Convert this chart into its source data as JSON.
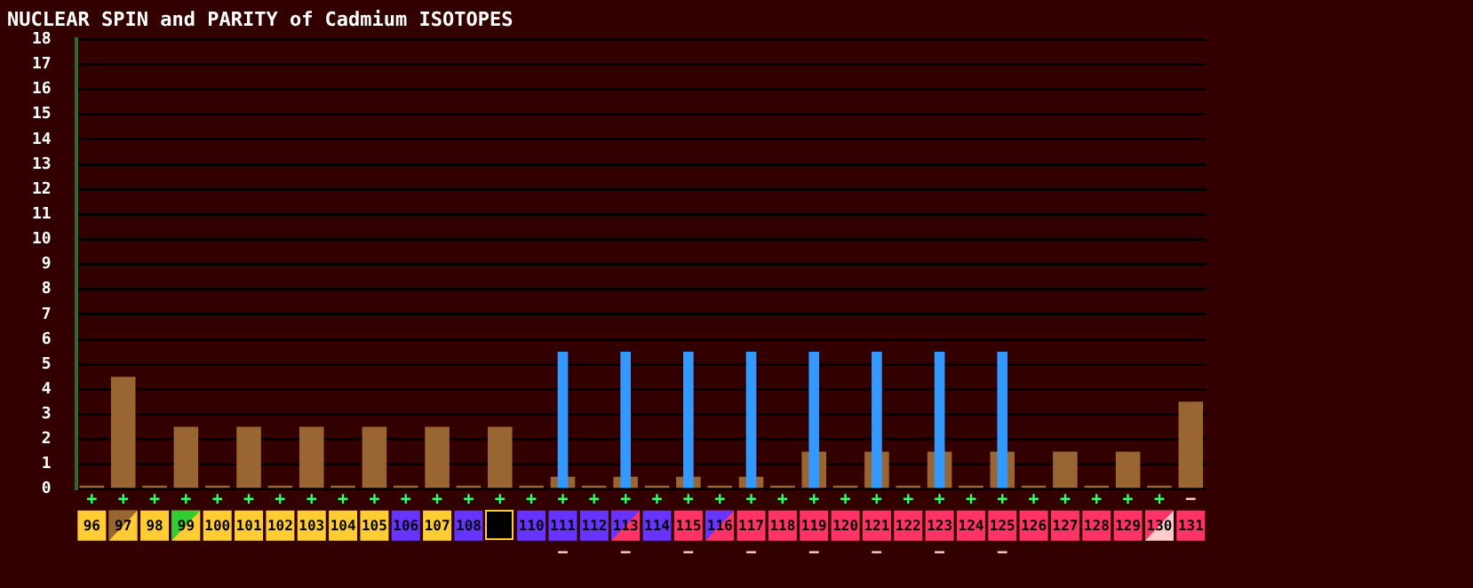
{
  "chart_data": {
    "type": "bar",
    "title": "NUCLEAR SPIN and PARITY of Cadmium ISOTOPES",
    "categories": [
      "96",
      "97",
      "98",
      "99",
      "100",
      "101",
      "102",
      "103",
      "104",
      "105",
      "106",
      "107",
      "108",
      null,
      "110",
      "111",
      "112",
      "113",
      "114",
      "115",
      "116",
      "117",
      "118",
      "119",
      "120",
      "121",
      "122",
      "123",
      "124",
      "125",
      "126",
      "127",
      "128",
      "129",
      "130",
      "131"
    ],
    "series": [
      {
        "color": "#996633",
        "values": [
          0,
          4.5,
          0,
          2.5,
          0,
          2.5,
          0,
          2.5,
          0,
          2.5,
          0,
          2.5,
          0,
          2.5,
          0,
          0.5,
          0,
          0.5,
          0,
          0.5,
          0,
          0.5,
          0,
          1.5,
          0,
          1.5,
          0,
          1.5,
          0,
          1.5,
          0,
          1.5,
          0,
          1.5,
          0,
          3.5
        ],
        "value_labels": [
          "+",
          "+",
          "+",
          "+",
          "+",
          "+",
          "+",
          "+",
          "+",
          "+",
          "+",
          "+",
          "+",
          "+",
          "+",
          "+",
          "+",
          "+",
          "+",
          "+",
          "+",
          "+",
          "+",
          "+",
          "+",
          "+",
          "+",
          "+",
          "+",
          "+",
          "+",
          "+",
          "+",
          "+",
          "+",
          "−"
        ]
      },
      {
        "color": "#3399ff",
        "values": [
          null,
          null,
          null,
          null,
          null,
          null,
          null,
          null,
          null,
          null,
          null,
          null,
          null,
          null,
          null,
          5.5,
          null,
          5.5,
          null,
          5.5,
          null,
          5.5,
          null,
          5.5,
          null,
          5.5,
          null,
          5.5,
          null,
          5.5,
          null,
          null,
          null,
          null,
          null,
          null
        ],
        "value_labels": [
          null,
          null,
          null,
          null,
          null,
          null,
          null,
          null,
          null,
          null,
          null,
          null,
          null,
          null,
          null,
          "−",
          null,
          "−",
          null,
          "−",
          null,
          "−",
          null,
          "−",
          null,
          "−",
          null,
          "−",
          null,
          "−",
          null,
          null,
          null,
          null,
          null,
          null
        ]
      }
    ],
    "ylim": [
      0,
      18
    ],
    "yticks": [
      0,
      1,
      2,
      3,
      4,
      5,
      6,
      7,
      8,
      9,
      10,
      11,
      12,
      13,
      14,
      15,
      16,
      17,
      18
    ],
    "grid": "y",
    "legend": false
  }
}
